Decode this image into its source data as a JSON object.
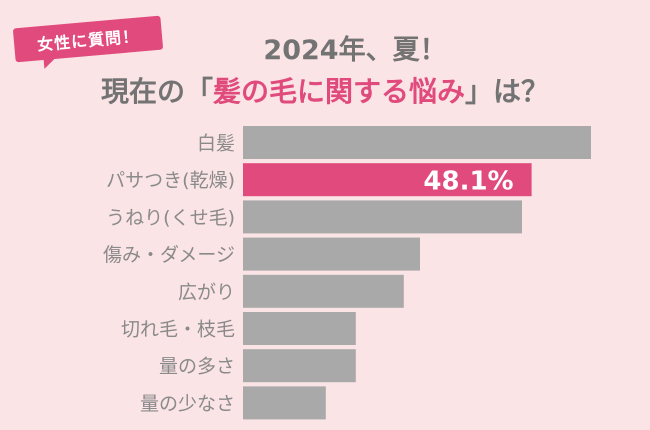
{
  "badge": {
    "label": "女性に質問！"
  },
  "title": {
    "line1": "2024年、夏！",
    "line2_prefix": "現在の「",
    "line2_highlight": "髪の毛に関する悩み",
    "line2_suffix": "」は？"
  },
  "colors": {
    "background": "#fbe4e6",
    "bar": "#a9a9a9",
    "highlight_bar": "#e04a7c",
    "label": "#8a8a8a",
    "accent": "#e04a7c"
  },
  "chart_data": {
    "type": "bar",
    "orientation": "horizontal",
    "categories": [
      "白髪",
      "パサつき(乾燥)",
      "うねり(くせ毛)",
      "傷み・ダメージ",
      "広がり",
      "切れ毛・枝毛",
      "量の多さ",
      "量の少なさ"
    ],
    "values": [
      58,
      48.1,
      46.5,
      29.5,
      26.8,
      18.8,
      18.8,
      13.8
    ],
    "highlight_index": 1,
    "highlight_label": "48.1%",
    "xlim": [
      0,
      58
    ]
  }
}
